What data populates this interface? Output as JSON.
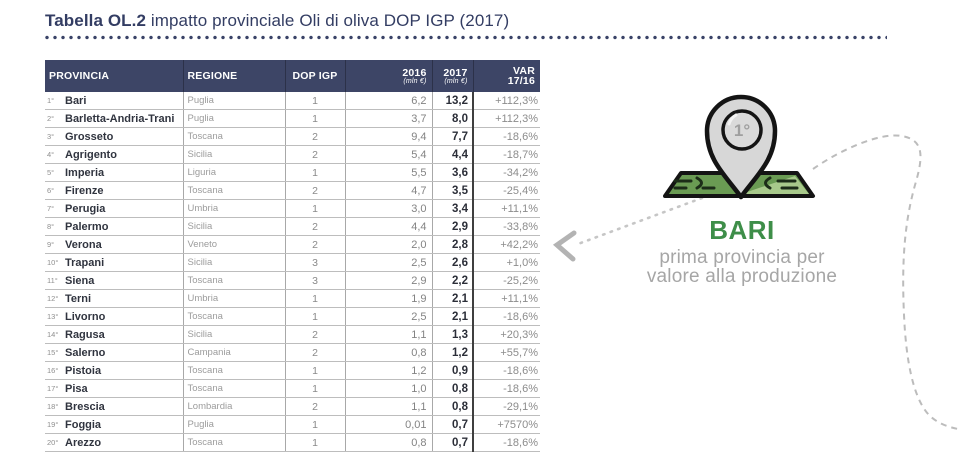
{
  "title": {
    "prefix": "Tabella OL.2",
    "text": " impatto provinciale Oli di oliva DOP IGP  (2017)"
  },
  "table": {
    "headers": {
      "provincia": "PROVINCIA",
      "regione": "REGIONE",
      "dop_igp": "DOP IGP",
      "y2016": "2016",
      "y2016_sub": "(mln €)",
      "y2017": "2017",
      "y2017_sub": "(mln €)",
      "var_line1": "VAR",
      "var_line2": "17/16"
    },
    "rows": [
      {
        "rank": "1°",
        "provincia": "Bari",
        "regione": "Puglia",
        "dop_igp": "1",
        "v2016": "6,2",
        "v2017": "13,2",
        "var": "+112,3%"
      },
      {
        "rank": "2°",
        "provincia": "Barletta-Andria-Trani",
        "regione": "Puglia",
        "dop_igp": "1",
        "v2016": "3,7",
        "v2017": "8,0",
        "var": "+112,3%"
      },
      {
        "rank": "3°",
        "provincia": "Grosseto",
        "regione": "Toscana",
        "dop_igp": "2",
        "v2016": "9,4",
        "v2017": "7,7",
        "var": "-18,6%"
      },
      {
        "rank": "4°",
        "provincia": "Agrigento",
        "regione": "Sicilia",
        "dop_igp": "2",
        "v2016": "5,4",
        "v2017": "4,4",
        "var": "-18,7%"
      },
      {
        "rank": "5°",
        "provincia": "Imperia",
        "regione": "Liguria",
        "dop_igp": "1",
        "v2016": "5,5",
        "v2017": "3,6",
        "var": "-34,2%"
      },
      {
        "rank": "6°",
        "provincia": "Firenze",
        "regione": "Toscana",
        "dop_igp": "2",
        "v2016": "4,7",
        "v2017": "3,5",
        "var": "-25,4%"
      },
      {
        "rank": "7°",
        "provincia": "Perugia",
        "regione": "Umbria",
        "dop_igp": "1",
        "v2016": "3,0",
        "v2017": "3,4",
        "var": "+11,1%"
      },
      {
        "rank": "8°",
        "provincia": "Palermo",
        "regione": "Sicilia",
        "dop_igp": "2",
        "v2016": "4,4",
        "v2017": "2,9",
        "var": "-33,8%"
      },
      {
        "rank": "9°",
        "provincia": "Verona",
        "regione": "Veneto",
        "dop_igp": "2",
        "v2016": "2,0",
        "v2017": "2,8",
        "var": "+42,2%"
      },
      {
        "rank": "10°",
        "provincia": "Trapani",
        "regione": "Sicilia",
        "dop_igp": "3",
        "v2016": "2,5",
        "v2017": "2,6",
        "var": "+1,0%"
      },
      {
        "rank": "11°",
        "provincia": "Siena",
        "regione": "Toscana",
        "dop_igp": "3",
        "v2016": "2,9",
        "v2017": "2,2",
        "var": "-25,2%"
      },
      {
        "rank": "12°",
        "provincia": "Terni",
        "regione": "Umbria",
        "dop_igp": "1",
        "v2016": "1,9",
        "v2017": "2,1",
        "var": "+11,1%"
      },
      {
        "rank": "13°",
        "provincia": "Livorno",
        "regione": "Toscana",
        "dop_igp": "1",
        "v2016": "2,5",
        "v2017": "2,1",
        "var": "-18,6%"
      },
      {
        "rank": "14°",
        "provincia": "Ragusa",
        "regione": "Sicilia",
        "dop_igp": "2",
        "v2016": "1,1",
        "v2017": "1,3",
        "var": "+20,3%"
      },
      {
        "rank": "15°",
        "provincia": "Salerno",
        "regione": "Campania",
        "dop_igp": "2",
        "v2016": "0,8",
        "v2017": "1,2",
        "var": "+55,7%"
      },
      {
        "rank": "16°",
        "provincia": "Pistoia",
        "regione": "Toscana",
        "dop_igp": "1",
        "v2016": "1,2",
        "v2017": "0,9",
        "var": "-18,6%"
      },
      {
        "rank": "17°",
        "provincia": "Pisa",
        "regione": "Toscana",
        "dop_igp": "1",
        "v2016": "1,0",
        "v2017": "0,8",
        "var": "-18,6%"
      },
      {
        "rank": "18°",
        "provincia": "Brescia",
        "regione": "Lombardia",
        "dop_igp": "2",
        "v2016": "1,1",
        "v2017": "0,8",
        "var": "-29,1%"
      },
      {
        "rank": "19°",
        "provincia": "Foggia",
        "regione": "Puglia",
        "dop_igp": "1",
        "v2016": "0,01",
        "v2017": "0,7",
        "var": "+7570%"
      },
      {
        "rank": "20°",
        "provincia": "Arezzo",
        "regione": "Toscana",
        "dop_igp": "1",
        "v2016": "0,8",
        "v2017": "0,7",
        "var": "-18,6%"
      }
    ]
  },
  "callout": {
    "pin_rank": "1°",
    "city": "BARI",
    "subtitle_line1": "prima provincia per",
    "subtitle_line2": "valore alla produzione"
  },
  "colors": {
    "header_navy": "#3d4566",
    "title_navy": "#333d63",
    "accent_green": "#3e8e49",
    "map_green": "#6a9b53",
    "map_green_light": "#a8c98b",
    "pin_gray": "#d7d7d7",
    "dash_gray": "#bcbcbc"
  }
}
